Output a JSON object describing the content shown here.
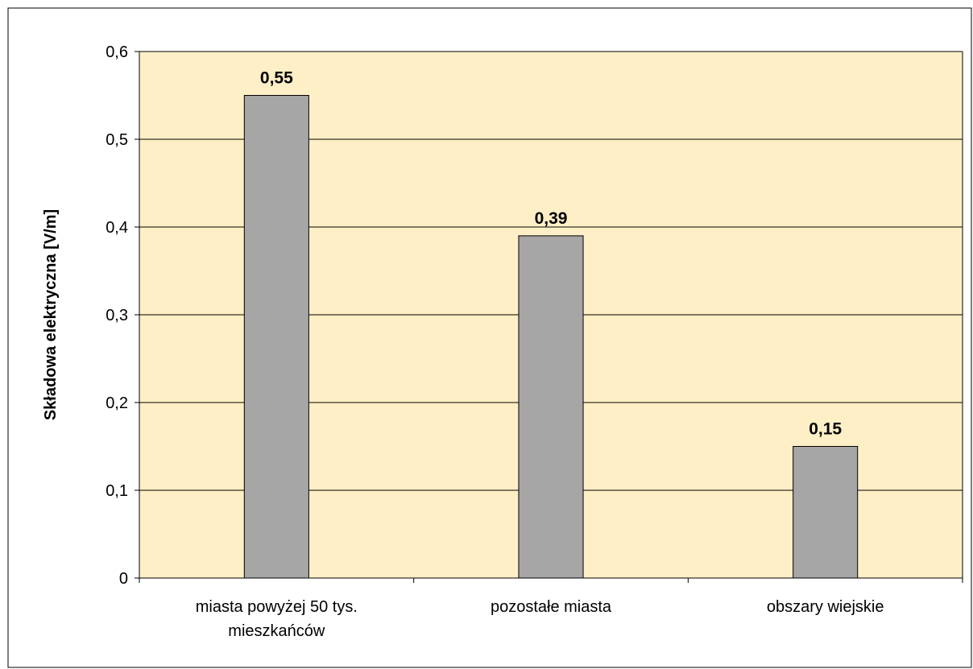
{
  "chart_data": {
    "type": "bar",
    "categories": [
      [
        "miasta powyżej 50 tys.",
        "mieszkańców"
      ],
      [
        "pozostałe miasta"
      ],
      [
        "obszary wiejskie"
      ]
    ],
    "values": [
      0.55,
      0.39,
      0.15
    ],
    "data_labels": [
      "0,55",
      "0,39",
      "0,15"
    ],
    "ylabel": "Składowa elektryczna [V/m]",
    "xlabel": "",
    "ylim": [
      0,
      0.6
    ],
    "yticks": [
      0,
      0.1,
      0.2,
      0.3,
      0.4,
      0.5,
      0.6
    ],
    "ytick_labels": [
      "0",
      "0,1",
      "0,2",
      "0,3",
      "0,4",
      "0,5",
      "0,6"
    ],
    "grid": true,
    "legend": "none",
    "colors": {
      "plot_background": "#FFEFC6",
      "bar_fill": "#A6A6A6",
      "bar_stroke": "#000000",
      "gridline": "#000000"
    }
  }
}
